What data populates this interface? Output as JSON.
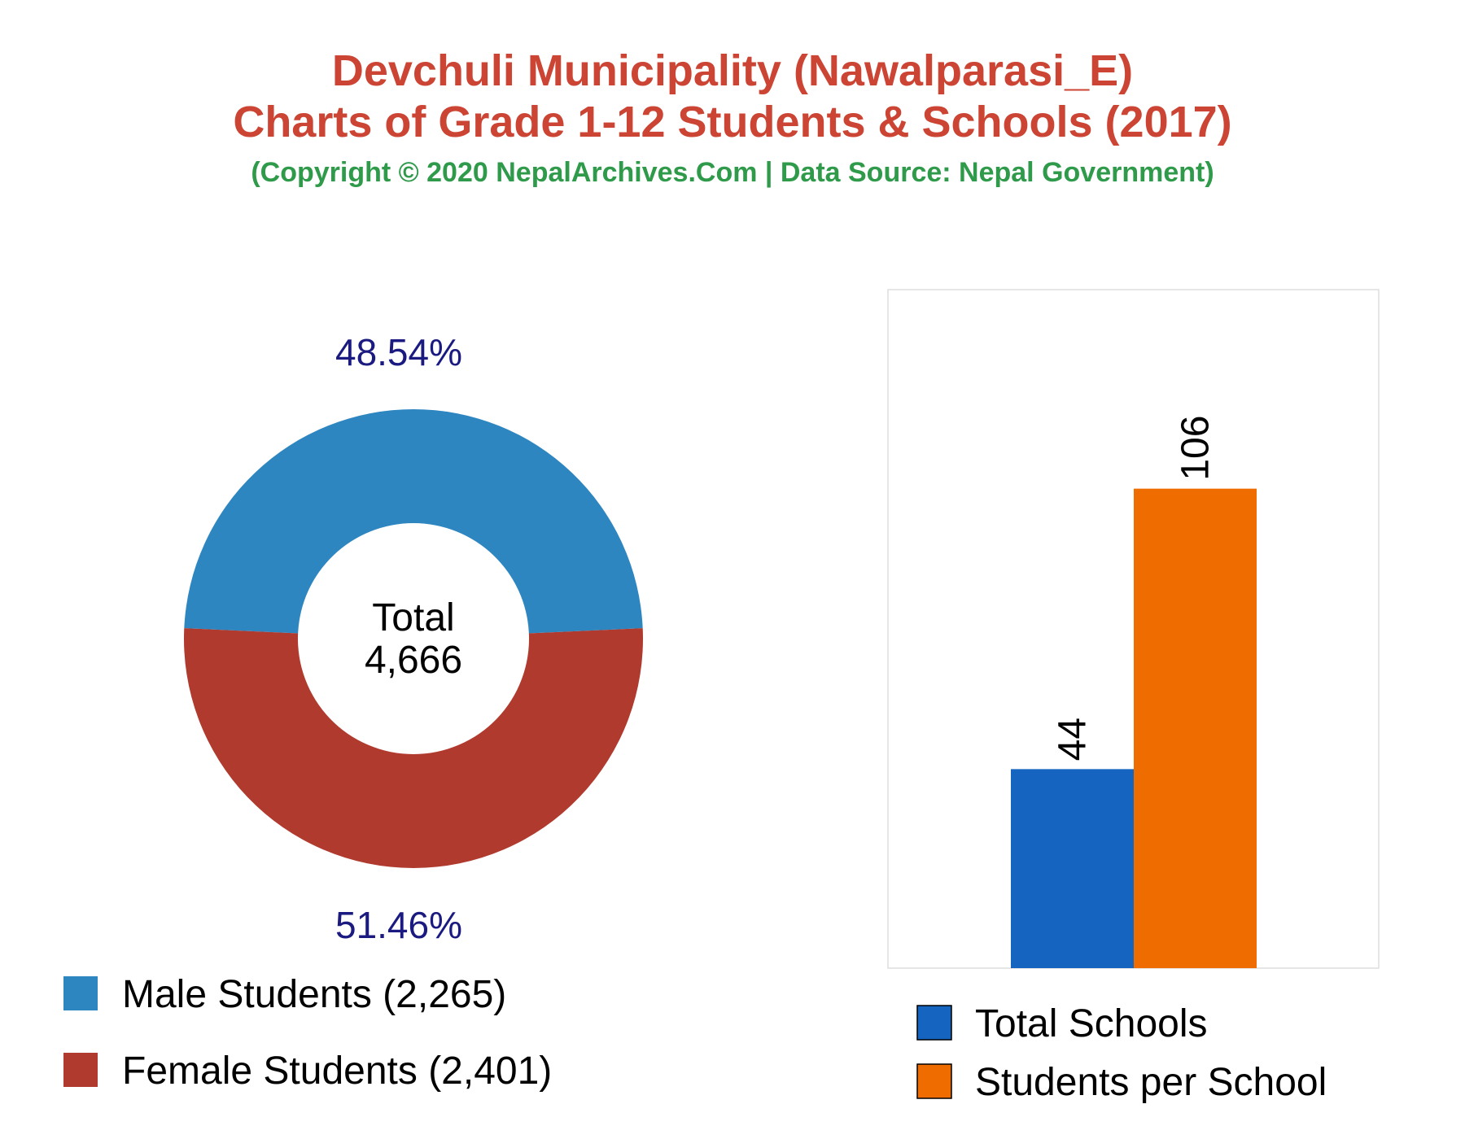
{
  "title": {
    "line1": "Devchuli Municipality (Nawalparasi_E)",
    "line2": "Charts of Grade 1-12 Students & Schools (2017)",
    "subtitle": "(Copyright © 2020 NepalArchives.Com | Data Source: Nepal Government)"
  },
  "colors": {
    "title": "#cc4433",
    "subtitle": "#2e9a4a",
    "percent_label": "#1a1a80",
    "male": "#2e86c1",
    "female": "#b03a2e",
    "total_schools": "#1565c0",
    "students_per_school": "#ef6c00"
  },
  "chart_data": [
    {
      "type": "pie",
      "donut": true,
      "center_label": [
        "Total",
        "4,666"
      ],
      "slices": [
        {
          "name": "Male Students (2,265)",
          "value": 2265,
          "percent_label": "48.54%",
          "color": "#2e86c1"
        },
        {
          "name": "Female Students (2,401)",
          "value": 2401,
          "percent_label": "51.46%",
          "color": "#b03a2e"
        }
      ],
      "legend_position": "bottom-left"
    },
    {
      "type": "bar",
      "categories": [
        "Total Schools",
        "Students per School"
      ],
      "values": [
        44,
        106
      ],
      "colors": [
        "#1565c0",
        "#ef6c00"
      ],
      "value_labels": [
        "44",
        "106"
      ],
      "ylim": [
        0,
        150
      ],
      "grid": false,
      "legend_position": "bottom"
    }
  ]
}
